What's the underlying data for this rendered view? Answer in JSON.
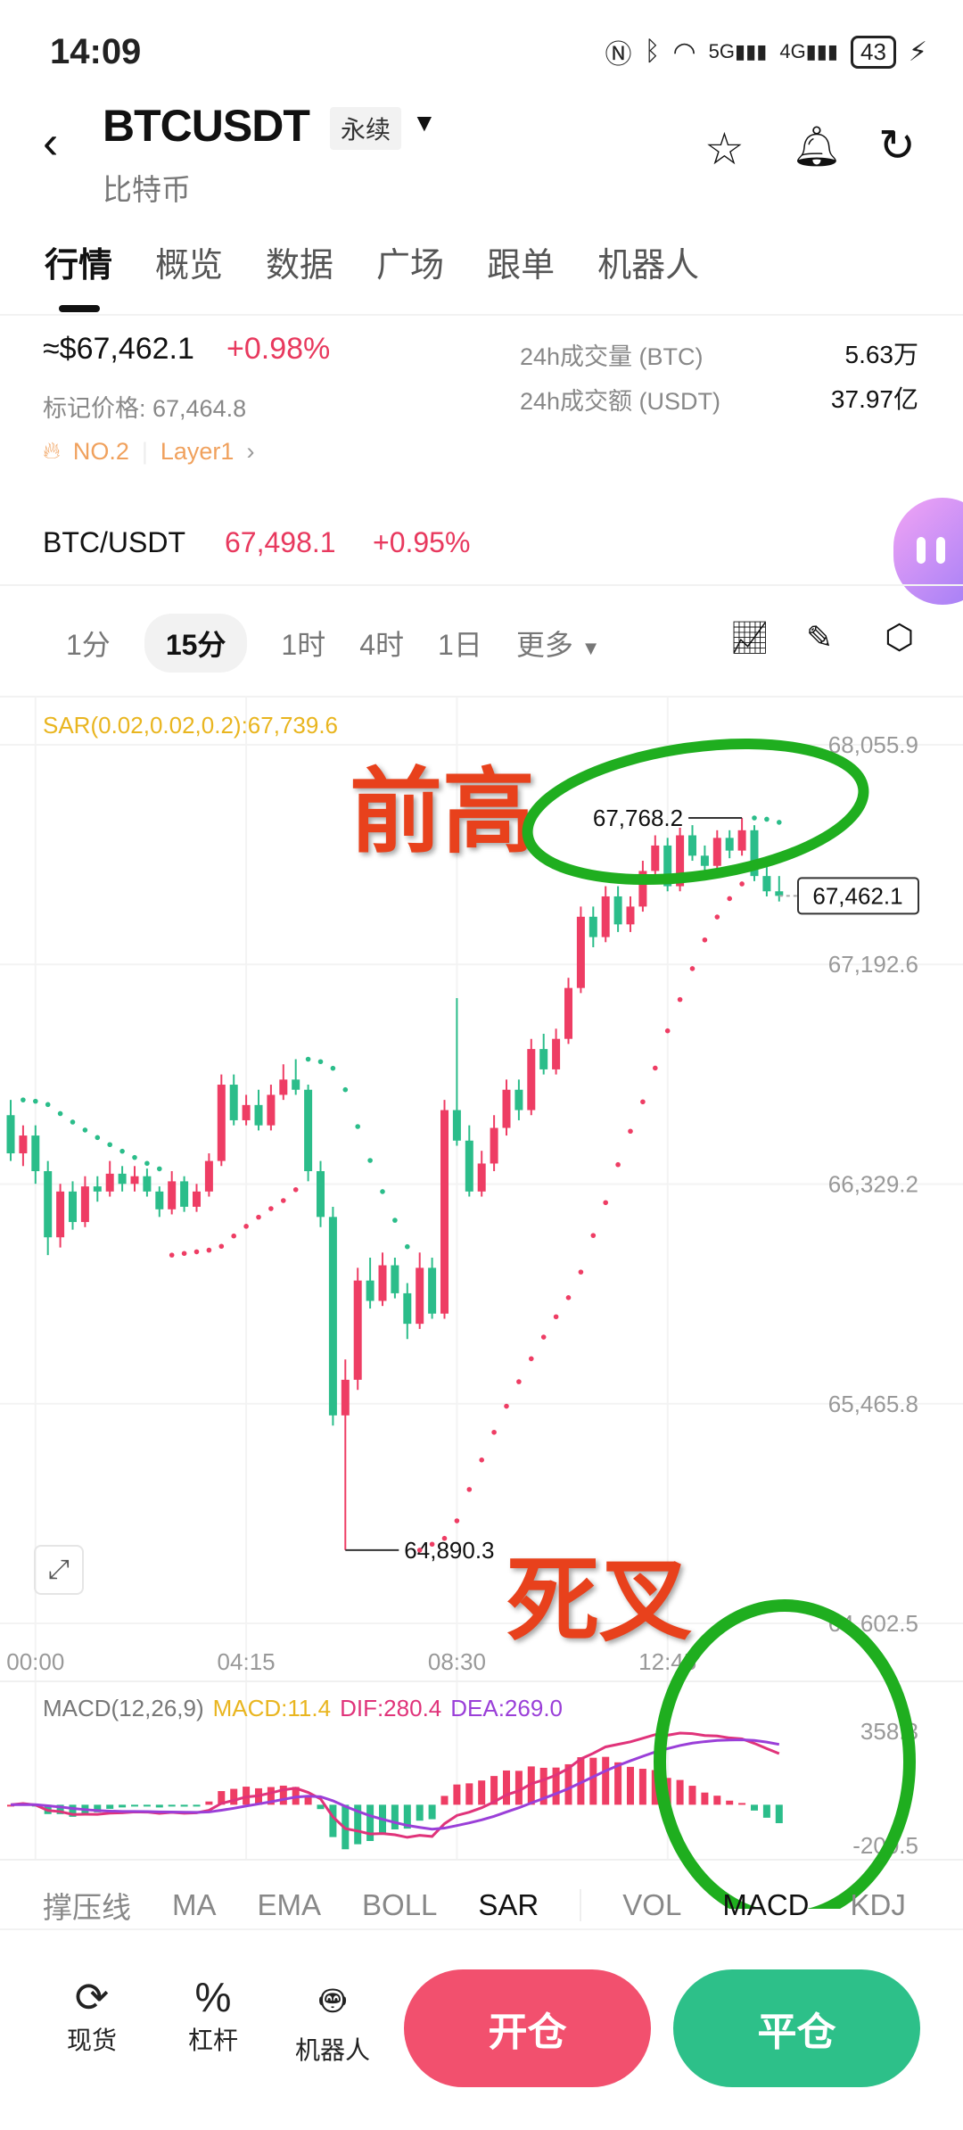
{
  "status_bar": {
    "time": "14:09",
    "battery": "43"
  },
  "header": {
    "title": "BTCUSDT",
    "contract_type": "永续",
    "subtitle": "比特币"
  },
  "tabs": [
    {
      "label": "行情",
      "active": true
    },
    {
      "label": "概览"
    },
    {
      "label": "数据"
    },
    {
      "label": "广场"
    },
    {
      "label": "跟单"
    },
    {
      "label": "机器人"
    }
  ],
  "stats": {
    "price": "≈$67,462.1",
    "change": "+0.98%",
    "mark_price": "标记价格: 67,464.8",
    "rank": "NO.2",
    "category": "Layer1",
    "rows": [
      {
        "label": "24h成交量 (BTC)",
        "value": "5.63万"
      },
      {
        "label": "24h成交额 (USDT)",
        "value": "37.97亿"
      }
    ]
  },
  "spot": {
    "pair": "BTC/USDT",
    "price": "67,498.1",
    "change": "+0.95%"
  },
  "timeframes": [
    {
      "label": "1分"
    },
    {
      "label": "15分",
      "active": true
    },
    {
      "label": "1时"
    },
    {
      "label": "4时"
    },
    {
      "label": "1日"
    },
    {
      "label": "更多"
    }
  ],
  "colors": {
    "up": "#ee3d64",
    "down": "#2bbd8a",
    "sar_label": "#e9b51f",
    "dif": "#e0337a",
    "dea": "#9a3fd8",
    "macd_label": "#e9b51f",
    "accent_red": "#f2506e",
    "accent_green": "#2dc089",
    "annotation_red": "#e8411c",
    "annotation_green": "#1fae1f"
  },
  "chart_data": {
    "type": "candlestick",
    "sar_label": "SAR(0.02,0.02,0.2):67,739.6",
    "sar_params": [
      0.02,
      0.02,
      0.2
    ],
    "y_ticks": [
      "68,055.9",
      "67,192.6",
      "66,329.2",
      "65,465.8",
      "64,602.5"
    ],
    "y_tick_values": [
      68055.9,
      67192.6,
      66329.2,
      65465.8,
      64602.5
    ],
    "x_ticks": [
      {
        "label": "00:00",
        "index": 2
      },
      {
        "label": "04:15",
        "index": 19
      },
      {
        "label": "08:30",
        "index": 36
      },
      {
        "label": "12:45",
        "index": 53
      }
    ],
    "high_label": "67,768.2",
    "low_label": "64,890.3",
    "last_price": "67,462.1",
    "candles": [
      [
        66600,
        66660,
        66420,
        66450
      ],
      [
        66450,
        66560,
        66400,
        66520
      ],
      [
        66520,
        66560,
        66330,
        66380
      ],
      [
        66380,
        66420,
        66050,
        66120
      ],
      [
        66120,
        66330,
        66080,
        66300
      ],
      [
        66300,
        66340,
        66150,
        66180
      ],
      [
        66180,
        66360,
        66160,
        66320
      ],
      [
        66320,
        66360,
        66260,
        66300
      ],
      [
        66300,
        66420,
        66280,
        66370
      ],
      [
        66370,
        66400,
        66300,
        66330
      ],
      [
        66330,
        66400,
        66300,
        66360
      ],
      [
        66360,
        66390,
        66280,
        66300
      ],
      [
        66300,
        66320,
        66200,
        66230
      ],
      [
        66230,
        66380,
        66210,
        66340
      ],
      [
        66340,
        66360,
        66220,
        66240
      ],
      [
        66240,
        66330,
        66220,
        66300
      ],
      [
        66300,
        66450,
        66280,
        66420
      ],
      [
        66420,
        66760,
        66400,
        66720
      ],
      [
        66720,
        66760,
        66560,
        66580
      ],
      [
        66580,
        66680,
        66560,
        66640
      ],
      [
        66640,
        66700,
        66540,
        66560
      ],
      [
        66560,
        66720,
        66540,
        66680
      ],
      [
        66680,
        66800,
        66660,
        66740
      ],
      [
        66740,
        66820,
        66680,
        66700
      ],
      [
        66700,
        66720,
        66340,
        66380
      ],
      [
        66380,
        66420,
        66160,
        66200
      ],
      [
        66200,
        66240,
        65380,
        65420
      ],
      [
        65420,
        65640,
        64890.3,
        65560
      ],
      [
        65560,
        66000,
        65520,
        65950
      ],
      [
        65950,
        66040,
        65840,
        65870
      ],
      [
        65870,
        66060,
        65850,
        66010
      ],
      [
        66010,
        66040,
        65880,
        65900
      ],
      [
        65900,
        65940,
        65720,
        65780
      ],
      [
        65780,
        66060,
        65760,
        66000
      ],
      [
        66000,
        66040,
        65800,
        65820
      ],
      [
        65820,
        66660,
        65800,
        66620
      ],
      [
        66620,
        67060,
        66480,
        66500
      ],
      [
        66500,
        66560,
        66280,
        66300
      ],
      [
        66300,
        66460,
        66280,
        66410
      ],
      [
        66410,
        66600,
        66380,
        66550
      ],
      [
        66550,
        66740,
        66520,
        66700
      ],
      [
        66700,
        66740,
        66580,
        66620
      ],
      [
        66620,
        66900,
        66600,
        66860
      ],
      [
        66860,
        66920,
        66760,
        66780
      ],
      [
        66780,
        66940,
        66760,
        66900
      ],
      [
        66900,
        67140,
        66880,
        67100
      ],
      [
        67100,
        67420,
        67080,
        67380
      ],
      [
        67380,
        67420,
        67260,
        67300
      ],
      [
        67300,
        67500,
        67280,
        67460
      ],
      [
        67460,
        67500,
        67320,
        67350
      ],
      [
        67350,
        67460,
        67320,
        67420
      ],
      [
        67420,
        67600,
        67400,
        67560
      ],
      [
        67560,
        67700,
        67540,
        67660
      ],
      [
        67660,
        67690,
        67480,
        67500
      ],
      [
        67500,
        67730,
        67480,
        67700
      ],
      [
        67700,
        67740,
        67600,
        67620
      ],
      [
        67620,
        67660,
        67540,
        67580
      ],
      [
        67580,
        67720,
        67560,
        67690
      ],
      [
        67690,
        67720,
        67610,
        67640
      ],
      [
        67640,
        67768.2,
        67620,
        67720
      ],
      [
        67720,
        67740,
        67520,
        67540
      ],
      [
        67540,
        67580,
        67460,
        67480
      ],
      [
        67480,
        67540,
        67440,
        67462.1
      ]
    ],
    "macd": {
      "label": "MACD(12,26,9)",
      "macd": "MACD:11.4",
      "dif": "DIF:280.4",
      "dea": "DEA:269.0",
      "y_ticks": [
        "358.3",
        "-200.5"
      ],
      "ylim": [
        -200.5,
        358.3
      ]
    }
  },
  "annotations": {
    "prev_high": "前高",
    "death_cross": "死叉"
  },
  "indicators": [
    {
      "label": "撑压线"
    },
    {
      "label": "MA"
    },
    {
      "label": "EMA"
    },
    {
      "label": "BOLL"
    },
    {
      "label": "SAR",
      "active": true
    },
    {
      "label": "VOL"
    },
    {
      "label": "MACD",
      "active": true
    },
    {
      "label": "KDJ"
    }
  ],
  "bottom": {
    "spot": "现货",
    "margin": "杠杆",
    "bot": "机器人",
    "open": "开仓",
    "close": "平仓"
  }
}
